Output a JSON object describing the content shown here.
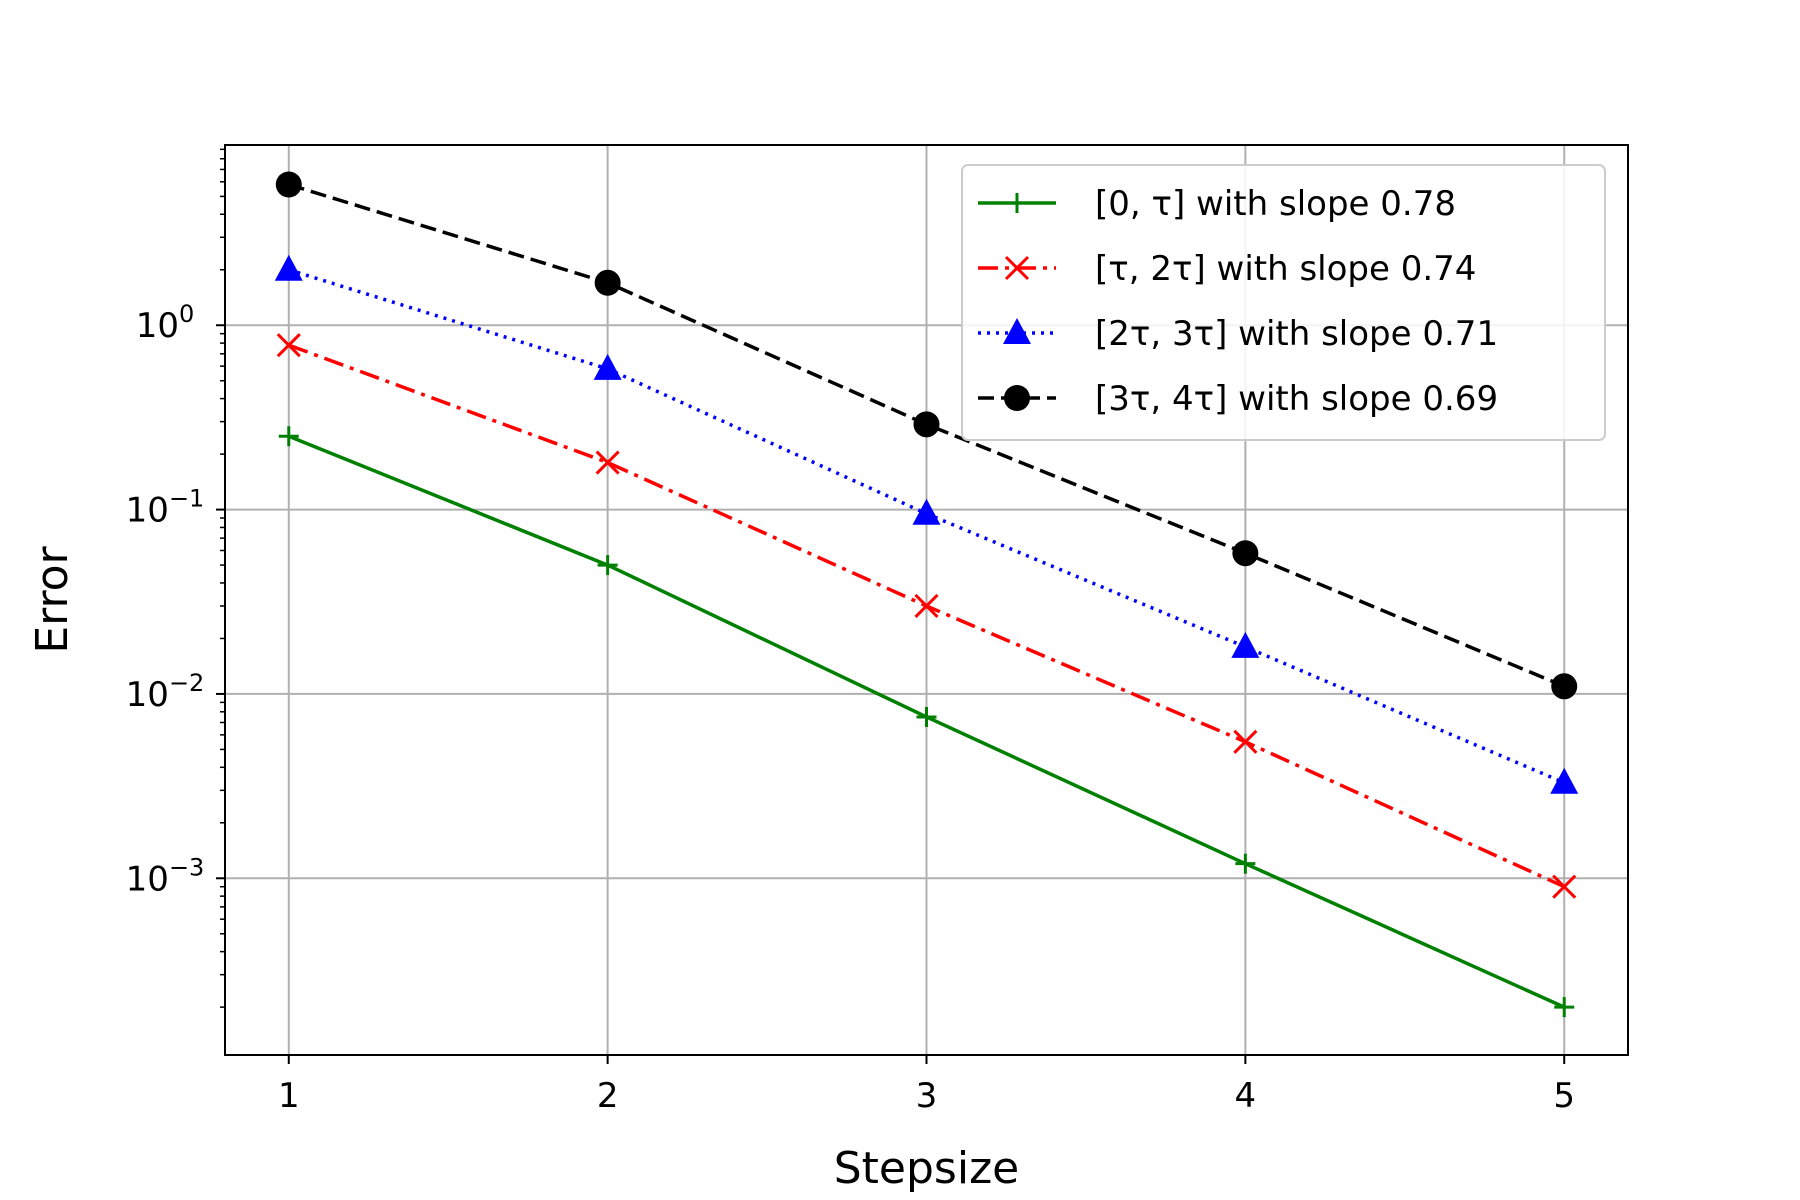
{
  "chart_data": {
    "type": "line",
    "title": "",
    "xlabel": "Stepsize",
    "ylabel": "Error",
    "x": [
      1,
      2,
      3,
      4,
      5
    ],
    "xlim": [
      0.8,
      5.2
    ],
    "x_ticks": [
      "1",
      "2",
      "3",
      "4",
      "5"
    ],
    "y_scale": "log",
    "ylim": [
      0.00011,
      9.5
    ],
    "y_ticks": [
      {
        "value": 1,
        "base": "10",
        "exp": "0"
      },
      {
        "value": 0.1,
        "base": "10",
        "exp": "−1"
      },
      {
        "value": 0.01,
        "base": "10",
        "exp": "−2"
      },
      {
        "value": 0.001,
        "base": "10",
        "exp": "−3"
      }
    ],
    "grid": true,
    "legend_position": "top-right",
    "series": [
      {
        "name": "[0, τ] with slope 0.78",
        "color": "#008000",
        "dash": "solid",
        "marker": "plus",
        "values": [
          0.25,
          0.05,
          0.0075,
          0.0012,
          0.0002
        ]
      },
      {
        "name": "[τ, 2τ] with slope 0.74",
        "color": "#ff0000",
        "dash": "dashdot",
        "marker": "x",
        "values": [
          0.78,
          0.18,
          0.03,
          0.0055,
          0.0009
        ]
      },
      {
        "name": "[2τ, 3τ] with slope 0.71",
        "color": "#0000ff",
        "dash": "dotted",
        "marker": "triangle",
        "values": [
          2.0,
          0.58,
          0.095,
          0.018,
          0.0033
        ]
      },
      {
        "name": "[3τ, 4τ] with slope 0.69",
        "color": "#000000",
        "dash": "dashed",
        "marker": "circle",
        "values": [
          5.8,
          1.7,
          0.29,
          0.058,
          0.011
        ]
      }
    ]
  }
}
